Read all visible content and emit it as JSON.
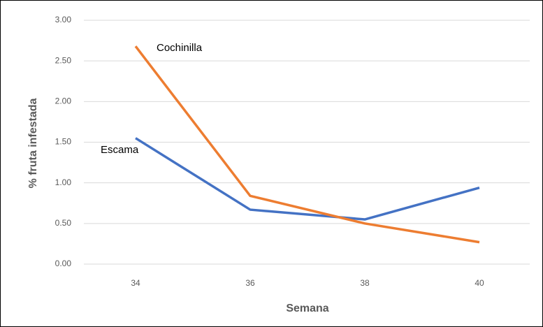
{
  "chart_data": {
    "type": "line",
    "categories": [
      "34",
      "36",
      "38",
      "40"
    ],
    "series": [
      {
        "name": "Escama",
        "color": "#4472c4",
        "values": [
          1.55,
          0.67,
          0.55,
          0.94
        ]
      },
      {
        "name": "Cochinilla",
        "color": "#ed7d31",
        "values": [
          2.68,
          0.84,
          0.5,
          0.27
        ]
      }
    ],
    "ylim": [
      0,
      3
    ],
    "yticks": [
      {
        "value": 0,
        "label": "0.00"
      },
      {
        "value": 0.5,
        "label": "0.50"
      },
      {
        "value": 1,
        "label": "1.00"
      },
      {
        "value": 1.5,
        "label": "1.50"
      },
      {
        "value": 2,
        "label": "2.00"
      },
      {
        "value": 2.5,
        "label": "2.50"
      },
      {
        "value": 3,
        "label": "3.00"
      }
    ],
    "y_label": "% fruta infestada",
    "x_label": "Semana",
    "grid": true
  }
}
